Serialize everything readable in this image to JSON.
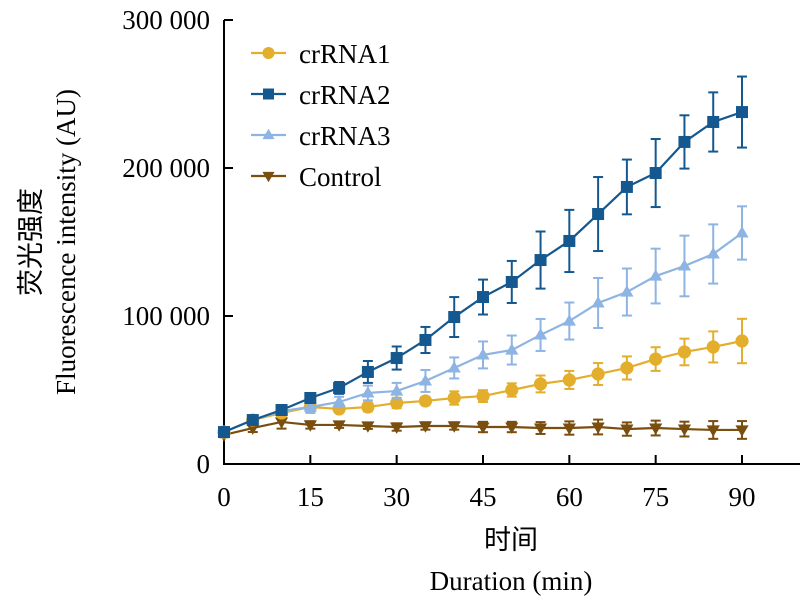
{
  "chart_data": {
    "type": "line",
    "title": "",
    "xlabel_cn": "时间",
    "xlabel": "Duration (min)",
    "ylabel_cn": "荧光强度",
    "ylabel": "Fluorescence intensity (AU)",
    "xlim": [
      0,
      100
    ],
    "ylim": [
      0,
      300000
    ],
    "xticks": [
      0,
      15,
      30,
      45,
      60,
      75,
      90
    ],
    "xtick_labels": [
      "0",
      "15",
      "30",
      "45",
      "60",
      "75",
      "90"
    ],
    "yticks": [
      0,
      100000,
      200000,
      300000
    ],
    "ytick_labels": [
      "0",
      "100 000",
      "200 000",
      "300 000"
    ],
    "grid": false,
    "legend_position": "top-left",
    "x": [
      0,
      5,
      10,
      15,
      20,
      25,
      30,
      35,
      40,
      45,
      50,
      55,
      60,
      65,
      70,
      75,
      80,
      85,
      90
    ],
    "series": [
      {
        "name": "crRNA1",
        "color": "#E3AE2B",
        "marker": "circle",
        "values": [
          21600,
          29700,
          34500,
          38500,
          37200,
          38500,
          41200,
          42600,
          44600,
          45900,
          50000,
          54100,
          56800,
          60800,
          64900,
          70900,
          75700,
          79100,
          83100
        ],
        "errors": [
          1500,
          2000,
          2500,
          3500,
          2000,
          3000,
          3500,
          2500,
          4500,
          4000,
          4500,
          5700,
          6100,
          7400,
          7800,
          8000,
          9000,
          10500,
          15000
        ]
      },
      {
        "name": "crRNA2",
        "color": "#14588F",
        "marker": "square",
        "values": [
          21600,
          29700,
          36500,
          44600,
          51400,
          62200,
          71600,
          83800,
          99300,
          112800,
          123000,
          137800,
          150700,
          168900,
          187200,
          196600,
          217600,
          231100,
          237800
        ],
        "errors": [
          1500,
          2000,
          2000,
          3000,
          4000,
          7400,
          7800,
          8800,
          13500,
          11800,
          14200,
          19300,
          21000,
          25000,
          18500,
          23000,
          18000,
          20000,
          24000
        ]
      },
      {
        "name": "crRNA3",
        "color": "#8DB4E2",
        "marker": "triangle-up",
        "values": [
          21600,
          29700,
          35800,
          38500,
          41900,
          48000,
          49300,
          56100,
          64900,
          73700,
          77000,
          87200,
          96600,
          108800,
          116200,
          127000,
          133800,
          141900,
          156100
        ],
        "errors": [
          1500,
          2000,
          2500,
          4000,
          3500,
          5000,
          5500,
          7400,
          7100,
          9100,
          9800,
          10800,
          12500,
          16900,
          15900,
          18500,
          20500,
          20000,
          18000
        ]
      },
      {
        "name": "Control",
        "color": "#7A4E0E",
        "marker": "triangle-down",
        "values": [
          19600,
          24300,
          28400,
          26400,
          26400,
          25700,
          25000,
          25700,
          25700,
          25000,
          25000,
          24300,
          24300,
          25000,
          23600,
          24300,
          23600,
          23000,
          23000
        ],
        "errors": [
          1500,
          2700,
          4500,
          2500,
          2000,
          2000,
          2500,
          2500,
          2500,
          3500,
          3500,
          4000,
          4500,
          5000,
          4500,
          5000,
          5000,
          6000,
          6000
        ]
      }
    ]
  }
}
